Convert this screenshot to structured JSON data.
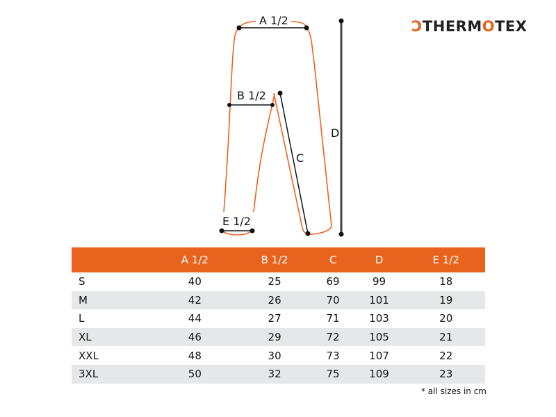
{
  "brand": {
    "logo_text": "THERMOTEX",
    "accent": "#e8641e"
  },
  "diagram": {
    "labels": {
      "a": "A 1/2",
      "b": "B 1/2",
      "c": "C",
      "d": "D",
      "e": "E 1/2"
    }
  },
  "table": {
    "headers": [
      "",
      "A 1/2",
      "B 1/2",
      "C",
      "D",
      "E 1/2"
    ],
    "rows": [
      [
        "S",
        "40",
        "25",
        "69",
        "99",
        "18"
      ],
      [
        "M",
        "42",
        "26",
        "70",
        "101",
        "19"
      ],
      [
        "L",
        "44",
        "27",
        "71",
        "103",
        "20"
      ],
      [
        "XL",
        "46",
        "29",
        "72",
        "105",
        "21"
      ],
      [
        "XXL",
        "48",
        "30",
        "73",
        "107",
        "22"
      ],
      [
        "3XL",
        "50",
        "32",
        "75",
        "109",
        "23"
      ]
    ]
  },
  "note": "* all sizes in cm"
}
